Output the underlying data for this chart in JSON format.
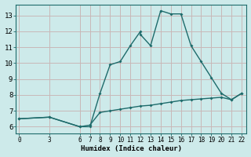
{
  "xlabel": "Humidex (Indice chaleur)",
  "bg_color": "#cdeaea",
  "grid_color": "#b0d4d4",
  "line_color": "#1e6b6b",
  "xticks": [
    0,
    3,
    6,
    7,
    8,
    9,
    10,
    11,
    12,
    13,
    14,
    15,
    16,
    17,
    18,
    19,
    20,
    21,
    22
  ],
  "yticks": [
    6,
    7,
    8,
    9,
    10,
    11,
    12,
    13
  ],
  "ylim": [
    5.6,
    13.7
  ],
  "xlim": [
    -0.3,
    22.5
  ],
  "line1_x": [
    0,
    3,
    6,
    7,
    8,
    9,
    10,
    11,
    12,
    12,
    13,
    14,
    15,
    16,
    17,
    18,
    19,
    20,
    21,
    22
  ],
  "line1_y": [
    6.5,
    6.6,
    6.0,
    6.0,
    8.1,
    9.9,
    10.1,
    11.1,
    12.0,
    11.8,
    11.1,
    13.3,
    13.1,
    13.1,
    11.1,
    10.1,
    9.1,
    8.1,
    7.7,
    8.1
  ],
  "line2_x": [
    0,
    3,
    6,
    7,
    8,
    9,
    10,
    11,
    12,
    13,
    14,
    15,
    16,
    17,
    18,
    19,
    20,
    21,
    22
  ],
  "line2_y": [
    6.5,
    6.6,
    6.0,
    6.1,
    6.9,
    7.0,
    7.1,
    7.2,
    7.3,
    7.35,
    7.45,
    7.55,
    7.65,
    7.7,
    7.75,
    7.8,
    7.85,
    7.7,
    8.1
  ]
}
